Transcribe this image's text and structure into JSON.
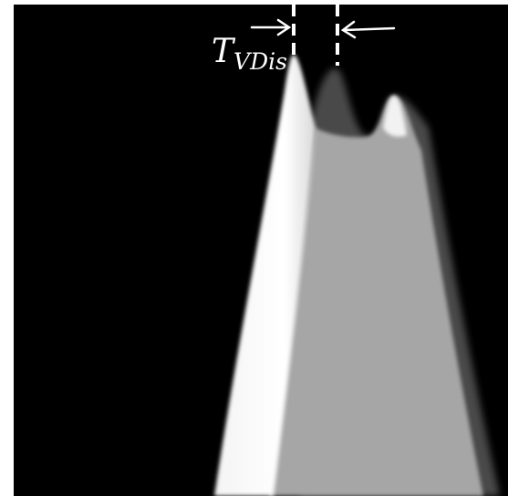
{
  "label": {
    "main": "T",
    "subscript": "VDis"
  }
}
